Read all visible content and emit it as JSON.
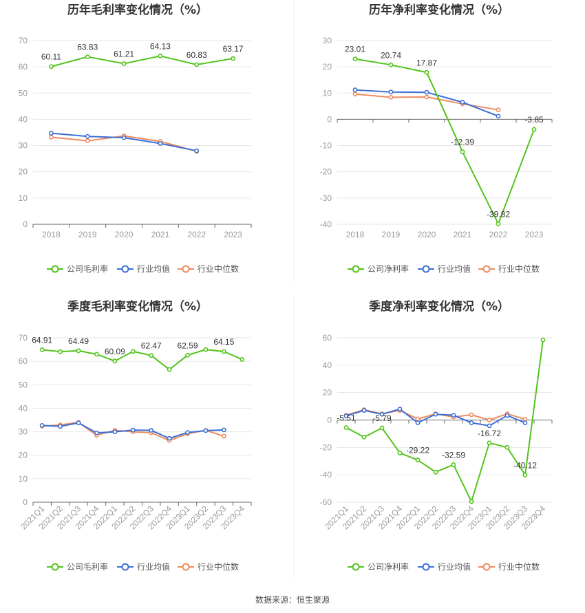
{
  "colors": {
    "company": "#52c41a",
    "industry_avg": "#3b6fd6",
    "industry_median": "#f08a5d",
    "grid": "#e6e6e6",
    "axis": "#666666"
  },
  "legend": {
    "company_gross": "公司毛利率",
    "company_net": "公司净利率",
    "industry_avg": "行业均值",
    "industry_median": "行业中位数"
  },
  "source_text": "数据来源：恒生聚源",
  "chart_data": [
    {
      "type": "line",
      "title": "历年毛利率变化情况（%）",
      "categories": [
        "2018",
        "2019",
        "2020",
        "2021",
        "2022",
        "2023"
      ],
      "yticks": [
        0,
        10,
        20,
        30,
        40,
        50,
        60,
        70
      ],
      "ylim": [
        0,
        70
      ],
      "grid": true,
      "legend_position": "bottom",
      "series": [
        {
          "name": "公司毛利率",
          "values": [
            60.11,
            63.83,
            61.21,
            64.13,
            60.83,
            63.17
          ]
        },
        {
          "name": "行业均值",
          "values": [
            34.7,
            33.5,
            33.0,
            30.8,
            28.0,
            null
          ]
        },
        {
          "name": "行业中位数",
          "values": [
            33.2,
            31.8,
            33.7,
            31.6,
            27.8,
            null
          ]
        }
      ],
      "data_labels": [
        {
          "index": 0,
          "text": "60.11"
        },
        {
          "index": 1,
          "text": "63.83"
        },
        {
          "index": 2,
          "text": "61.21"
        },
        {
          "index": 3,
          "text": "64.13"
        },
        {
          "index": 4,
          "text": "60.83"
        },
        {
          "index": 5,
          "text": "63.17"
        }
      ]
    },
    {
      "type": "line",
      "title": "历年净利率变化情况（%）",
      "categories": [
        "2018",
        "2019",
        "2020",
        "2021",
        "2022",
        "2023"
      ],
      "yticks": [
        -40,
        -30,
        -20,
        -10,
        0,
        10,
        20,
        30
      ],
      "ylim": [
        -40,
        30
      ],
      "grid": true,
      "legend_position": "bottom",
      "series": [
        {
          "name": "公司净利率",
          "values": [
            23.01,
            20.74,
            17.87,
            -12.39,
            -39.82,
            -3.85
          ]
        },
        {
          "name": "行业均值",
          "values": [
            11.2,
            10.4,
            10.3,
            6.5,
            1.2,
            null
          ]
        },
        {
          "name": "行业中位数",
          "values": [
            9.6,
            8.4,
            8.5,
            5.9,
            3.6,
            null
          ]
        }
      ],
      "data_labels": [
        {
          "index": 0,
          "text": "23.01"
        },
        {
          "index": 1,
          "text": "20.74"
        },
        {
          "index": 2,
          "text": "17.87"
        },
        {
          "index": 3,
          "text": "-12.39"
        },
        {
          "index": 4,
          "text": "-39.82"
        },
        {
          "index": 5,
          "text": "-3.85"
        }
      ]
    },
    {
      "type": "line",
      "title": "季度毛利率变化情况（%）",
      "categories": [
        "2021Q1",
        "2021Q2",
        "2021Q3",
        "2021Q4",
        "2022Q1",
        "2022Q2",
        "2022Q3",
        "2022Q4",
        "2023Q1",
        "2023Q2",
        "2023Q3",
        "2023Q4"
      ],
      "yticks": [
        0,
        10,
        20,
        30,
        40,
        50,
        60,
        70
      ],
      "ylim": [
        0,
        70
      ],
      "grid": true,
      "legend_position": "bottom",
      "series": [
        {
          "name": "公司毛利率",
          "values": [
            64.91,
            64.1,
            64.49,
            63.0,
            60.09,
            64.2,
            62.47,
            56.5,
            62.59,
            65.0,
            64.15,
            60.8
          ]
        },
        {
          "name": "行业均值",
          "values": [
            32.7,
            32.3,
            33.8,
            29.5,
            30.0,
            30.7,
            30.6,
            27.2,
            29.7,
            30.5,
            30.8,
            null
          ]
        },
        {
          "name": "行业中位数",
          "values": [
            32.4,
            32.9,
            34.0,
            28.5,
            30.6,
            30.0,
            29.6,
            26.3,
            29.2,
            30.6,
            28.1,
            null
          ]
        }
      ],
      "data_labels": [
        {
          "index": 0,
          "text": "64.91"
        },
        {
          "index": 2,
          "text": "64.49"
        },
        {
          "index": 4,
          "text": "60.09"
        },
        {
          "index": 6,
          "text": "62.47"
        },
        {
          "index": 8,
          "text": "62.59"
        },
        {
          "index": 10,
          "text": "64.15"
        }
      ]
    },
    {
      "type": "line",
      "title": "季度净利率变化情况（%）",
      "categories": [
        "2021Q1",
        "2021Q2",
        "2021Q3",
        "2021Q4",
        "2022Q1",
        "2022Q2",
        "2022Q3",
        "2022Q4",
        "2023Q1",
        "2023Q2",
        "2023Q3",
        "2023Q4"
      ],
      "yticks": [
        -60,
        -40,
        -20,
        0,
        20,
        40,
        60
      ],
      "ylim": [
        -60,
        60
      ],
      "grid": true,
      "legend_position": "bottom",
      "series": [
        {
          "name": "公司净利率",
          "values": [
            -5.51,
            -12.5,
            -5.79,
            -24.0,
            -29.22,
            -38.0,
            -32.59,
            -59.5,
            -16.72,
            -20.0,
            -40.12,
            58.5
          ]
        },
        {
          "name": "行业均值",
          "values": [
            3.0,
            7.0,
            4.2,
            8.0,
            -2.0,
            4.2,
            3.5,
            -2.0,
            -4.2,
            3.3,
            -2.0,
            null
          ]
        },
        {
          "name": "行业中位数",
          "values": [
            3.5,
            7.5,
            4.5,
            7.0,
            0.8,
            4.5,
            2.2,
            3.8,
            0.0,
            4.5,
            0.6,
            null
          ]
        }
      ],
      "data_labels": [
        {
          "index": 0,
          "text": "-5.51"
        },
        {
          "index": 2,
          "text": "-5.79"
        },
        {
          "index": 4,
          "text": "-29.22"
        },
        {
          "index": 6,
          "text": "-32.59"
        },
        {
          "index": 8,
          "text": "-16.72"
        },
        {
          "index": 10,
          "text": "-40.12"
        }
      ]
    }
  ]
}
